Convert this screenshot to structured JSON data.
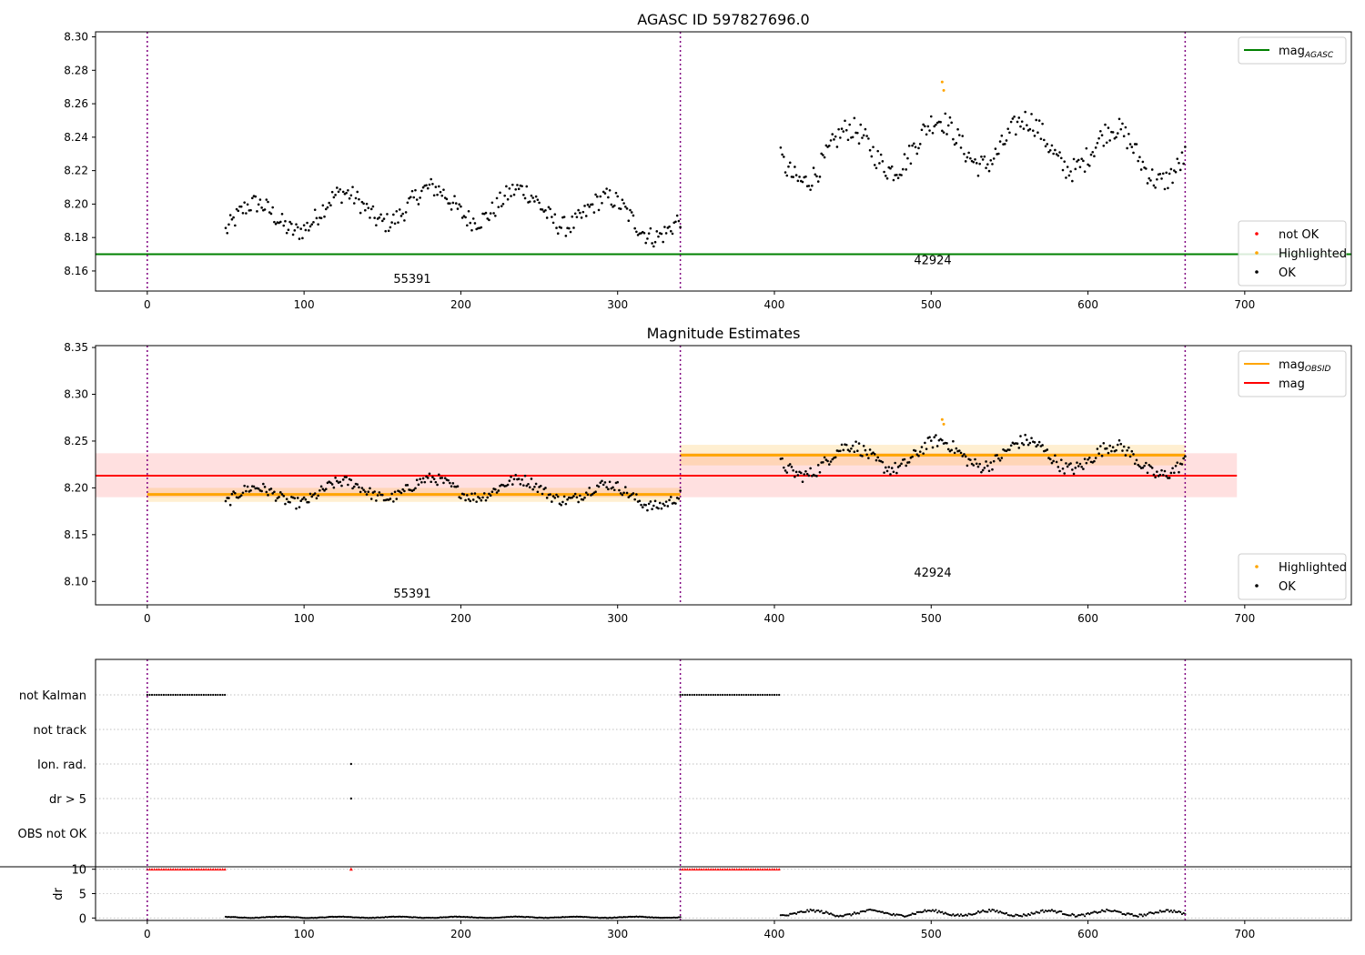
{
  "chart_data": [
    {
      "type": "scatter",
      "title": "AGASC ID 597827696.0",
      "xlim": [
        -33,
        768
      ],
      "ylim": [
        8.148,
        8.303
      ],
      "xticks": [
        0,
        100,
        200,
        300,
        400,
        500,
        600,
        700
      ],
      "yticks": [
        8.16,
        8.18,
        8.2,
        8.22,
        8.24,
        8.26,
        8.28,
        8.3
      ],
      "grid": false,
      "vlines": [
        0,
        340,
        662
      ],
      "hlines": [
        {
          "name": "mag",
          "subscript": "AGASC",
          "y": 8.17,
          "x0": -33,
          "x1": 768,
          "color": "#008000"
        }
      ],
      "annotations": [
        {
          "text": "55391",
          "x": 169,
          "y": 8.153
        },
        {
          "text": "42924",
          "x": 501,
          "y": 8.164
        }
      ],
      "segments": [
        {
          "x0": 50,
          "x1": 340,
          "base": 8.188,
          "amp": 0.01,
          "phase": 0.3,
          "trend": 0.012,
          "noise": 0.006
        },
        {
          "x0": 404,
          "x1": 662,
          "base": 8.225,
          "amp": 0.014,
          "phase": 2.1,
          "trend": 0.012,
          "noise": 0.007
        }
      ],
      "highlight_points": [
        {
          "x": 507,
          "y": 8.273
        },
        {
          "x": 508,
          "y": 8.268
        }
      ],
      "legends": [
        {
          "position": "upper-right",
          "entries": [
            {
              "label": "mag",
              "sub": "AGASC",
              "kind": "line",
              "color": "#008000"
            }
          ]
        },
        {
          "position": "lower-right",
          "entries": [
            {
              "label": "not OK",
              "kind": "dot",
              "color": "#ff0000"
            },
            {
              "label": "Highlighted",
              "kind": "dot",
              "color": "#ffa500"
            },
            {
              "label": "OK",
              "kind": "dot",
              "color": "#000000"
            }
          ]
        }
      ]
    },
    {
      "type": "scatter",
      "title": "Magnitude Estimates",
      "xlim": [
        -33,
        768
      ],
      "ylim": [
        8.075,
        8.352
      ],
      "xticks": [
        0,
        100,
        200,
        300,
        400,
        500,
        600,
        700
      ],
      "yticks": [
        8.1,
        8.15,
        8.2,
        8.25,
        8.3,
        8.35
      ],
      "grid": false,
      "vlines": [
        0,
        340,
        662
      ],
      "bands": [
        {
          "x0": -33,
          "x1": 695,
          "y0": 8.19,
          "y1": 8.237,
          "color": "#ff0000",
          "alpha": 0.12,
          "center": 8.213,
          "name": "mag"
        },
        {
          "x0": 0,
          "x1": 340,
          "y0": 8.185,
          "y1": 8.2,
          "color": "#ffa500",
          "alpha": 0.18,
          "center": 8.193,
          "name": "mag",
          "sub": "OBSID"
        },
        {
          "x0": 340,
          "x1": 662,
          "y0": 8.224,
          "y1": 8.246,
          "color": "#ffa500",
          "alpha": 0.18,
          "center": 8.235,
          "name": "mag",
          "sub": "OBSID"
        }
      ],
      "annotations": [
        {
          "text": "55391",
          "x": 169,
          "y": 8.083
        },
        {
          "text": "42924",
          "x": 501,
          "y": 8.105
        }
      ],
      "segments": [
        {
          "x0": 50,
          "x1": 340,
          "base": 8.188,
          "amp": 0.01,
          "phase": 0.3,
          "trend": 0.012,
          "noise": 0.006
        },
        {
          "x0": 404,
          "x1": 662,
          "base": 8.225,
          "amp": 0.014,
          "phase": 2.1,
          "trend": 0.012,
          "noise": 0.007
        }
      ],
      "highlight_points": [
        {
          "x": 507,
          "y": 8.273
        },
        {
          "x": 508,
          "y": 8.268
        }
      ],
      "legends": [
        {
          "position": "upper-right",
          "entries": [
            {
              "label": "mag",
              "sub": "OBSID",
              "kind": "line",
              "color": "#ffa500"
            },
            {
              "label": "mag",
              "kind": "line",
              "color": "#ff0000"
            }
          ]
        },
        {
          "position": "lower-right",
          "entries": [
            {
              "label": "Highlighted",
              "kind": "dot",
              "color": "#ffa500"
            },
            {
              "label": "OK",
              "kind": "dot",
              "color": "#000000"
            }
          ]
        }
      ]
    },
    {
      "type": "scatter",
      "title": "",
      "xlim": [
        -33,
        768
      ],
      "xticks": [
        0,
        100,
        200,
        300,
        400,
        500,
        600,
        700
      ],
      "vlines": [
        0,
        340,
        662
      ],
      "flag_rows": [
        {
          "label": "not Kalman",
          "ranges": [
            [
              0,
              50
            ],
            [
              340,
              404
            ]
          ]
        },
        {
          "label": "not track",
          "ranges": []
        },
        {
          "label": "Ion. rad.",
          "points": [
            130
          ]
        },
        {
          "label": "dr > 5",
          "points": [
            130
          ]
        },
        {
          "label": "OBS not OK",
          "ranges": []
        }
      ],
      "dr": {
        "ylabel": "dr",
        "ylim": [
          -0.5,
          10.5
        ],
        "yticks": [
          0,
          5,
          10
        ],
        "clipped_at": 10,
        "clipped_ranges": [
          [
            0,
            50
          ],
          [
            340,
            404
          ]
        ],
        "clipped_points": [
          130
        ],
        "segments": [
          {
            "x0": 50,
            "x1": 340,
            "base": 0.15,
            "amp": 0.12,
            "noise": 0.05
          },
          {
            "x0": 404,
            "x1": 662,
            "base": 1.0,
            "amp": 0.5,
            "noise": 0.25
          }
        ]
      }
    }
  ]
}
